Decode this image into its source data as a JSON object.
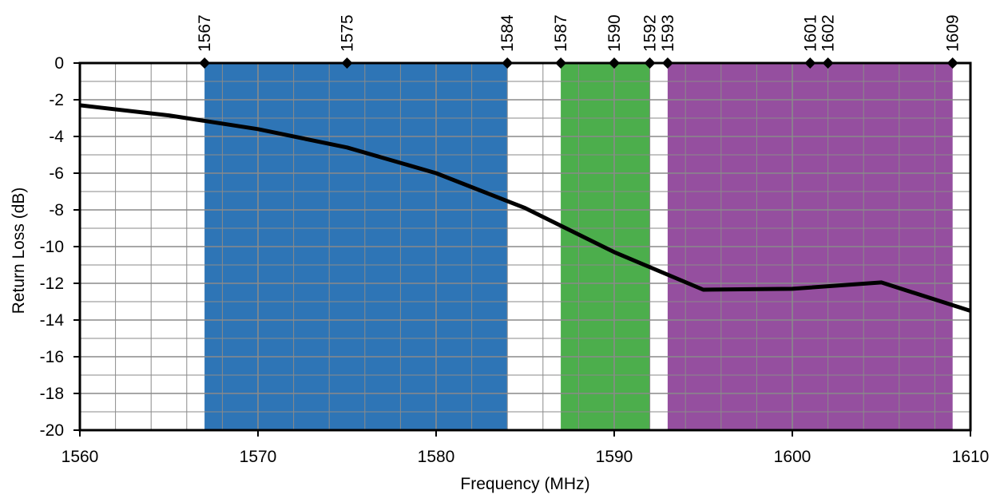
{
  "chart_data": {
    "type": "line",
    "title": "",
    "xlabel": "Frequency (MHz)",
    "ylabel": "Return Loss (dB)",
    "xlim": [
      1560,
      1610
    ],
    "ylim": [
      -20,
      0
    ],
    "x_ticks": [
      1560,
      1570,
      1580,
      1590,
      1600,
      1610
    ],
    "y_ticks": [
      0,
      -2,
      -4,
      -6,
      -8,
      -10,
      -12,
      -14,
      -16,
      -18,
      -20
    ],
    "grid": true,
    "legend": "none",
    "series": [
      {
        "x": [
          1560,
          1565,
          1570,
          1575,
          1580,
          1585,
          1590,
          1595,
          1600,
          1605,
          1610
        ],
        "y": [
          -2.3,
          -2.85,
          -3.6,
          -4.6,
          -6.0,
          -7.9,
          -10.3,
          -12.35,
          -12.3,
          -11.95,
          -13.5
        ],
        "color": "#000000"
      }
    ],
    "bands": [
      {
        "from": 1567,
        "to": 1584,
        "color": "#2e75b6"
      },
      {
        "from": 1587,
        "to": 1592,
        "color": "#4cae4c"
      },
      {
        "from": 1593,
        "to": 1609,
        "color": "#954f9f"
      }
    ],
    "markers": [
      1567,
      1575,
      1584,
      1587,
      1590,
      1592,
      1593,
      1601,
      1602,
      1609
    ]
  }
}
